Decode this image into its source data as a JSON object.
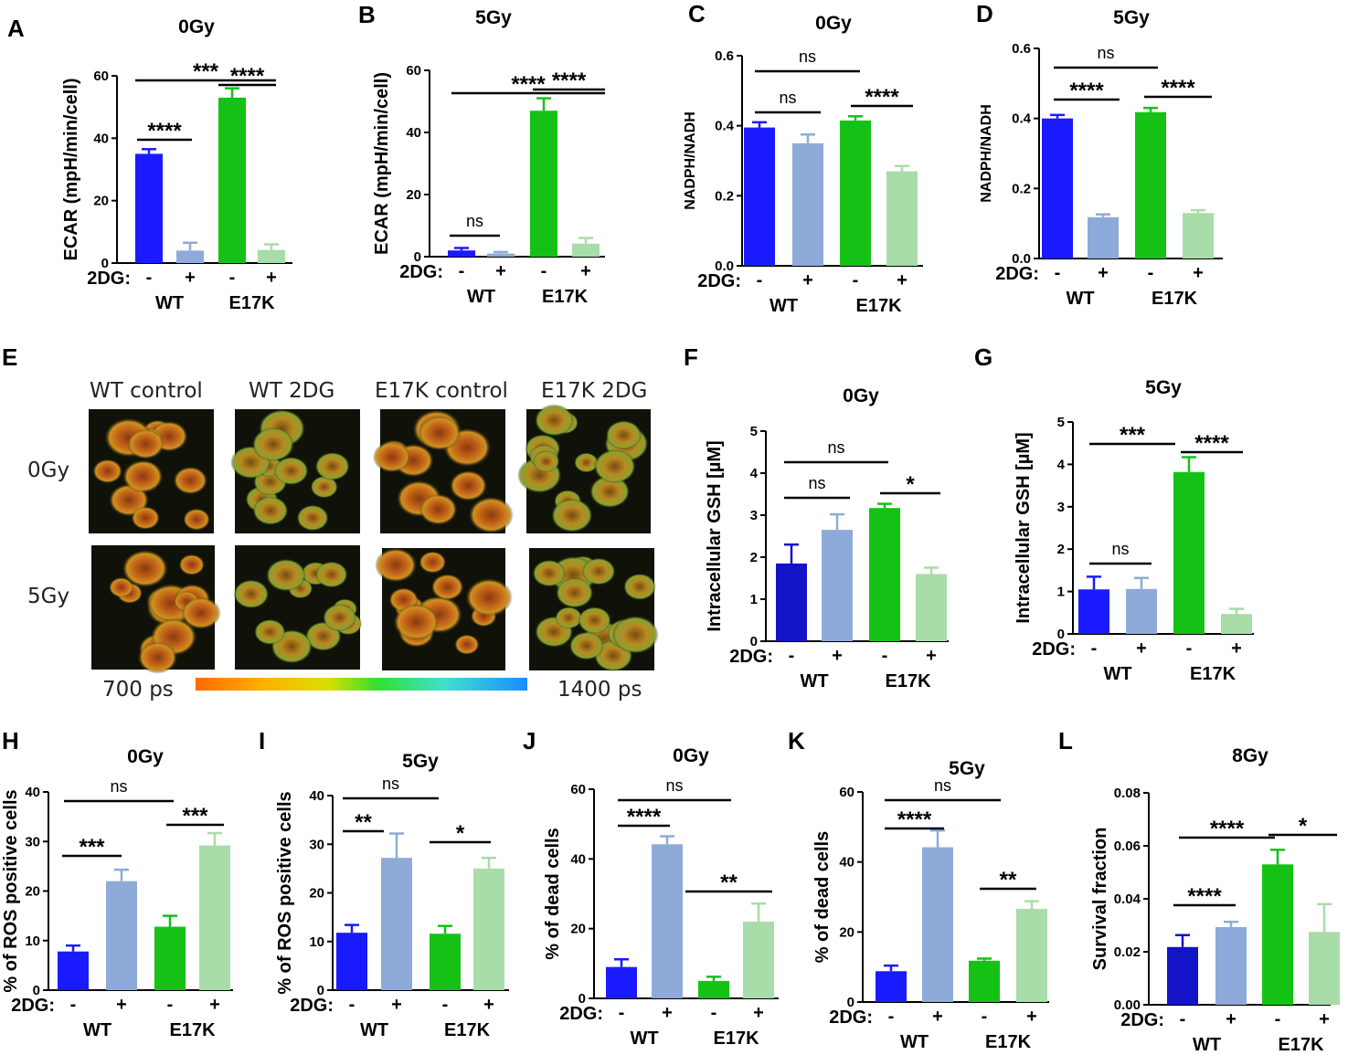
{
  "colors": {
    "wt_ctrl": "#1a1aff",
    "wt_2dg": "#8eaad8",
    "e17k_ctrl": "#16c116",
    "e17k_2dg": "#a8dca8",
    "wt_ctrl_dark": "#1313c8"
  },
  "treatment_label": "2DG:",
  "treatment_signs": [
    "-",
    "+",
    "-",
    "+"
  ],
  "groups": [
    "WT",
    "E17K"
  ],
  "imaging": {
    "label": "E",
    "columns": [
      "WT control",
      "WT 2DG",
      "E17K control",
      "E17K 2DG"
    ],
    "rows": [
      "0Gy",
      "5Gy"
    ],
    "scale_min": "700 ps",
    "scale_max": "1400 ps"
  },
  "chart_data": [
    {
      "panel": "A",
      "type": "bar",
      "title": "0Gy",
      "ylabel": "ECAR (mpH/min/cell)",
      "ylim": [
        0,
        60
      ],
      "yticks": [
        0,
        20,
        40,
        60
      ],
      "values": [
        35,
        4,
        53,
        4.2
      ],
      "errors": [
        1.5,
        2.5,
        3,
        1.8
      ],
      "annotations": [
        {
          "from": 0,
          "to": 1,
          "label": "****"
        },
        {
          "from": 0,
          "to": 2,
          "label": "***"
        },
        {
          "from": 2,
          "to": 3,
          "label": "****"
        }
      ]
    },
    {
      "panel": "B",
      "type": "bar",
      "title": "5Gy",
      "ylabel": "ECAR (mpH/min/cell)",
      "ylim": [
        0,
        60
      ],
      "yticks": [
        0,
        20,
        40,
        60
      ],
      "values": [
        2,
        1,
        47,
        4.2
      ],
      "errors": [
        0.8,
        0.5,
        4,
        1.8
      ],
      "annotations": [
        {
          "from": 0,
          "to": 1,
          "label": "ns"
        },
        {
          "from": 0,
          "to": 2,
          "label": "****"
        },
        {
          "from": 2,
          "to": 3,
          "label": "****"
        }
      ]
    },
    {
      "panel": "C",
      "type": "bar",
      "title": "0Gy",
      "ylabel": "NADPH/NADH",
      "ylim": [
        0,
        0.6
      ],
      "yticks": [
        "0.0",
        "0.2",
        "0.4",
        "0.6"
      ],
      "values": [
        0.395,
        0.35,
        0.415,
        0.27
      ],
      "errors": [
        0.015,
        0.025,
        0.012,
        0.015
      ],
      "annotations": [
        {
          "from": 0,
          "to": 1,
          "label": "ns"
        },
        {
          "from": 0,
          "to": 2,
          "label": "ns"
        },
        {
          "from": 2,
          "to": 3,
          "label": "****"
        }
      ]
    },
    {
      "panel": "D",
      "type": "bar",
      "title": "5Gy",
      "ylabel": "NADPH/NADH",
      "ylim": [
        0,
        0.6
      ],
      "yticks": [
        "0.0",
        "0.2",
        "0.4",
        "0.6"
      ],
      "values": [
        0.4,
        0.118,
        0.418,
        0.13
      ],
      "errors": [
        0.01,
        0.008,
        0.012,
        0.008
      ],
      "annotations": [
        {
          "from": 0,
          "to": 1,
          "label": "****"
        },
        {
          "from": 0,
          "to": 2,
          "label": "ns"
        },
        {
          "from": 2,
          "to": 3,
          "label": "****"
        }
      ]
    },
    {
      "panel": "F",
      "type": "bar",
      "title": "0Gy",
      "ylabel": "Intracellular GSH [µM]",
      "ylim": [
        0,
        5
      ],
      "yticks": [
        0,
        1,
        2,
        3,
        4,
        5
      ],
      "values": [
        1.85,
        2.65,
        3.17,
        1.6
      ],
      "errors": [
        0.45,
        0.37,
        0.1,
        0.15
      ],
      "annotations": [
        {
          "from": 0,
          "to": 1,
          "label": "ns"
        },
        {
          "from": 0,
          "to": 2,
          "label": "ns"
        },
        {
          "from": 2,
          "to": 3,
          "label": "*"
        }
      ]
    },
    {
      "panel": "G",
      "type": "bar",
      "title": "5Gy",
      "ylabel": "Intracellular GSH [µM]",
      "ylim": [
        0,
        5
      ],
      "yticks": [
        0,
        1,
        2,
        3,
        4,
        5
      ],
      "values": [
        1.05,
        1.06,
        3.82,
        0.47
      ],
      "errors": [
        0.3,
        0.26,
        0.35,
        0.12
      ],
      "annotations": [
        {
          "from": 0,
          "to": 1,
          "label": "ns"
        },
        {
          "from": 0,
          "to": 2,
          "label": "***"
        },
        {
          "from": 2,
          "to": 3,
          "label": "****"
        }
      ]
    },
    {
      "panel": "H",
      "type": "bar",
      "title": "0Gy",
      "ylabel": "% of ROS positive cells",
      "ylim": [
        0,
        40
      ],
      "yticks": [
        0,
        10,
        20,
        30,
        40
      ],
      "values": [
        7.8,
        22,
        12.8,
        29.2
      ],
      "errors": [
        1.2,
        2.3,
        2.2,
        2.5
      ],
      "annotations": [
        {
          "from": 0,
          "to": 1,
          "label": "***"
        },
        {
          "from": 0,
          "to": 2,
          "label": "ns"
        },
        {
          "from": 2,
          "to": 3,
          "label": "***"
        }
      ]
    },
    {
      "panel": "I",
      "type": "bar",
      "title": "5Gy",
      "ylabel": "% of ROS positive cells",
      "ylim": [
        0,
        40
      ],
      "yticks": [
        0,
        10,
        20,
        30,
        40
      ],
      "values": [
        11.8,
        27.2,
        11.6,
        25
      ],
      "errors": [
        1.6,
        5,
        1.6,
        2.2
      ],
      "annotations": [
        {
          "from": 0,
          "to": 1,
          "label": "**"
        },
        {
          "from": 0,
          "to": 2,
          "label": "ns"
        },
        {
          "from": 2,
          "to": 3,
          "label": "*"
        }
      ]
    },
    {
      "panel": "J",
      "type": "bar",
      "title": "0Gy",
      "ylabel": "% of dead cells",
      "ylim": [
        0,
        60
      ],
      "yticks": [
        0,
        20,
        40,
        60
      ],
      "values": [
        9,
        44.2,
        5,
        22
      ],
      "errors": [
        2.2,
        2.3,
        1.2,
        5.2
      ],
      "annotations": [
        {
          "from": 0,
          "to": 1,
          "label": "****"
        },
        {
          "from": 0,
          "to": 2,
          "label": "ns"
        },
        {
          "from": 2,
          "to": 3,
          "label": "**"
        }
      ]
    },
    {
      "panel": "K",
      "type": "bar",
      "title": "5Gy",
      "ylabel": "% of dead cells",
      "ylim": [
        0,
        60
      ],
      "yticks": [
        0,
        20,
        40,
        60
      ],
      "values": [
        8.8,
        44.2,
        11.8,
        26.6
      ],
      "errors": [
        1.6,
        4.8,
        0.6,
        2.2
      ],
      "annotations": [
        {
          "from": 0,
          "to": 1,
          "label": "****"
        },
        {
          "from": 0,
          "to": 2,
          "label": "ns"
        },
        {
          "from": 2,
          "to": 3,
          "label": "**"
        }
      ]
    },
    {
      "panel": "L",
      "type": "bar",
      "title": "8Gy",
      "ylabel": "Survival fraction",
      "ylim": [
        0,
        0.08
      ],
      "yticks": [
        "0.00",
        "0.02",
        "0.04",
        "0.06",
        "0.08"
      ],
      "values": [
        0.0218,
        0.0293,
        0.053,
        0.0275
      ],
      "errors": [
        0.0045,
        0.002,
        0.0055,
        0.0105
      ],
      "annotations": [
        {
          "from": 0,
          "to": 1,
          "label": "****"
        },
        {
          "from": 0,
          "to": 2,
          "label": "****"
        },
        {
          "from": 2,
          "to": 3,
          "label": "*"
        }
      ]
    }
  ]
}
